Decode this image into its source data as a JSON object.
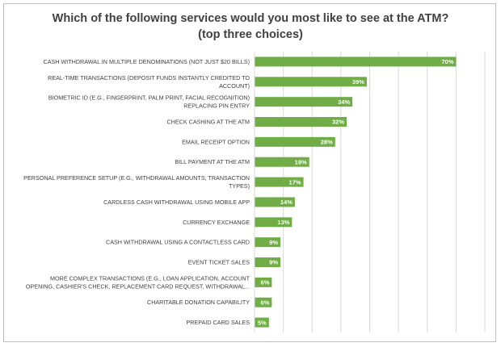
{
  "title": "Which of the following services would you most like to see at the ATM?",
  "subtitle": "(top three choices)",
  "colors": {
    "bar": "#70ad47",
    "grid": "#d9d9d9",
    "text": "#404040",
    "label": "#ffffff"
  },
  "chart_data": {
    "type": "bar",
    "orientation": "horizontal",
    "title": "Which of the following services would you most like to see at the ATM?",
    "subtitle": "(top three choices)",
    "categories": [
      [
        "CASH WITHDRAWAL IN MULTIPLE DENOMINATIONS (NOT JUST $20 BILLS)"
      ],
      [
        "REAL-TIME TRANSACTIONS (DEPOSIT FUNDS INSTANTLY CREDITED TO",
        "ACCOUNT)"
      ],
      [
        "BIOMETRIC ID (E.G., FINGERPRINT, PALM PRINT, FACIAL RECOGNITION)",
        "REPLACING PIN ENTRY"
      ],
      [
        "CHECK CASHING AT THE ATM"
      ],
      [
        "EMAIL RECEIPT OPTION"
      ],
      [
        "BILL PAYMENT AT THE ATM"
      ],
      [
        "PERSONAL PREFERENCE SETUP (E.G., WITHDRAWAL AMOUNTS, TRANSACTION",
        "TYPES)"
      ],
      [
        "CARDLESS CASH WITHDRAWAL USING MOBILE APP"
      ],
      [
        "CURRENCY EXCHANGE"
      ],
      [
        "CASH WITHDRAWAL USING A CONTACTLESS CARD"
      ],
      [
        "EVENT TICKET SALES"
      ],
      [
        "MORE COMPLEX TRANSACTIONS (E.G., LOAN APPLICATION, ACCOUNT",
        "OPENING, CASHIER'S CHECK, REPLACEMENT CARD REQUEST, WITHDRAWAL..."
      ],
      [
        "CHARITABLE DONATION CAPABILITY"
      ],
      [
        "PREPAID CARD SALES"
      ]
    ],
    "values": [
      70,
      39,
      34,
      32,
      28,
      19,
      17,
      14,
      13,
      9,
      9,
      6,
      6,
      5
    ],
    "value_labels": [
      "70%",
      "39%",
      "34%",
      "32%",
      "28%",
      "19%",
      "17%",
      "14%",
      "13%",
      "9%",
      "9%",
      "6%",
      "6%",
      "5%"
    ],
    "unit": "%",
    "xlim": [
      0,
      80
    ],
    "grid": true,
    "legend": "none"
  }
}
